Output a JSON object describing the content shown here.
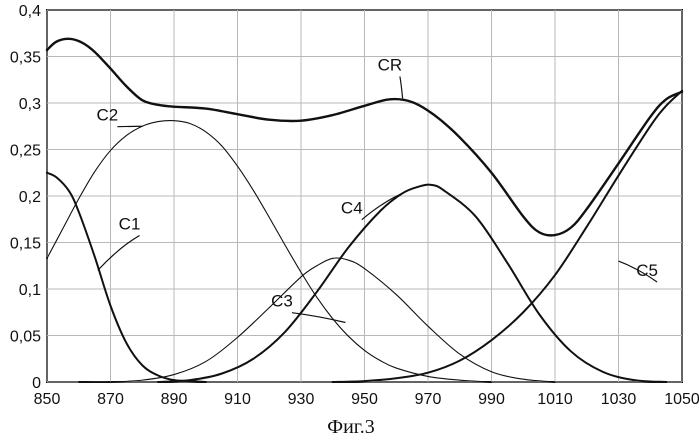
{
  "chart_data": {
    "type": "line",
    "xlim": [
      850,
      1050
    ],
    "ylim": [
      0,
      0.4
    ],
    "grid": true,
    "x_ticks": [
      "850",
      "870",
      "890",
      "910",
      "930",
      "950",
      "970",
      "990",
      "1010",
      "1030",
      "1050"
    ],
    "y_ticks": [
      "0",
      "0,05",
      "0,1",
      "0,15",
      "0,2",
      "0,25",
      "0,3",
      "0,35",
      "0,4"
    ],
    "series": [
      {
        "name": "CR",
        "color": "#111111",
        "points": [
          [
            850,
            0.357
          ],
          [
            853,
            0.366
          ],
          [
            857,
            0.369
          ],
          [
            861,
            0.365
          ],
          [
            865,
            0.355
          ],
          [
            870,
            0.337
          ],
          [
            875,
            0.318
          ],
          [
            880,
            0.303
          ],
          [
            885,
            0.298
          ],
          [
            890,
            0.296
          ],
          [
            900,
            0.294
          ],
          [
            910,
            0.288
          ],
          [
            920,
            0.282
          ],
          [
            930,
            0.281
          ],
          [
            940,
            0.287
          ],
          [
            950,
            0.297
          ],
          [
            958,
            0.304
          ],
          [
            965,
            0.301
          ],
          [
            972,
            0.287
          ],
          [
            980,
            0.263
          ],
          [
            990,
            0.225
          ],
          [
            1000,
            0.178
          ],
          [
            1005,
            0.161
          ],
          [
            1010,
            0.158
          ],
          [
            1015,
            0.166
          ],
          [
            1020,
            0.186
          ],
          [
            1030,
            0.235
          ],
          [
            1040,
            0.285
          ],
          [
            1045,
            0.304
          ],
          [
            1050,
            0.312
          ]
        ]
      },
      {
        "name": "C1",
        "color": "#111111",
        "points": [
          [
            850,
            0.225
          ],
          [
            853,
            0.22
          ],
          [
            857,
            0.205
          ],
          [
            860,
            0.183
          ],
          [
            865,
            0.135
          ],
          [
            870,
            0.082
          ],
          [
            875,
            0.042
          ],
          [
            880,
            0.018
          ],
          [
            885,
            0.007
          ],
          [
            890,
            0.002
          ],
          [
            895,
            0.001
          ],
          [
            900,
            0.0
          ]
        ]
      },
      {
        "name": "C2",
        "color": "#111111",
        "points": [
          [
            850,
            0.133
          ],
          [
            855,
            0.165
          ],
          [
            860,
            0.197
          ],
          [
            865,
            0.226
          ],
          [
            870,
            0.249
          ],
          [
            875,
            0.265
          ],
          [
            880,
            0.275
          ],
          [
            885,
            0.28
          ],
          [
            890,
            0.281
          ],
          [
            895,
            0.278
          ],
          [
            900,
            0.269
          ],
          [
            905,
            0.254
          ],
          [
            910,
            0.232
          ],
          [
            915,
            0.206
          ],
          [
            920,
            0.177
          ],
          [
            925,
            0.147
          ],
          [
            930,
            0.118
          ],
          [
            935,
            0.091
          ],
          [
            940,
            0.068
          ],
          [
            945,
            0.049
          ],
          [
            950,
            0.034
          ],
          [
            955,
            0.023
          ],
          [
            960,
            0.015
          ],
          [
            970,
            0.006
          ],
          [
            980,
            0.002
          ],
          [
            990,
            0.0
          ]
        ]
      },
      {
        "name": "C3",
        "color": "#111111",
        "points": [
          [
            860,
            0.0
          ],
          [
            870,
            0.0
          ],
          [
            880,
            0.002
          ],
          [
            890,
            0.008
          ],
          [
            900,
            0.022
          ],
          [
            910,
            0.048
          ],
          [
            920,
            0.08
          ],
          [
            930,
            0.113
          ],
          [
            935,
            0.125
          ],
          [
            940,
            0.133
          ],
          [
            945,
            0.131
          ],
          [
            950,
            0.122
          ],
          [
            960,
            0.094
          ],
          [
            970,
            0.06
          ],
          [
            980,
            0.03
          ],
          [
            990,
            0.011
          ],
          [
            1000,
            0.003
          ],
          [
            1010,
            0.0
          ]
        ]
      },
      {
        "name": "C4",
        "color": "#111111",
        "points": [
          [
            885,
            0.0
          ],
          [
            895,
            0.002
          ],
          [
            905,
            0.009
          ],
          [
            915,
            0.025
          ],
          [
            925,
            0.054
          ],
          [
            935,
            0.097
          ],
          [
            945,
            0.145
          ],
          [
            955,
            0.184
          ],
          [
            962,
            0.203
          ],
          [
            967,
            0.21
          ],
          [
            971,
            0.212
          ],
          [
            975,
            0.206
          ],
          [
            985,
            0.178
          ],
          [
            995,
            0.128
          ],
          [
            1005,
            0.073
          ],
          [
            1015,
            0.033
          ],
          [
            1025,
            0.011
          ],
          [
            1035,
            0.002
          ],
          [
            1045,
            0.0
          ]
        ]
      },
      {
        "name": "C5",
        "color": "#111111",
        "points": [
          [
            940,
            0.0
          ],
          [
            950,
            0.001
          ],
          [
            960,
            0.004
          ],
          [
            970,
            0.01
          ],
          [
            980,
            0.023
          ],
          [
            990,
            0.045
          ],
          [
            1000,
            0.075
          ],
          [
            1010,
            0.115
          ],
          [
            1020,
            0.167
          ],
          [
            1030,
            0.222
          ],
          [
            1040,
            0.275
          ],
          [
            1045,
            0.297
          ],
          [
            1050,
            0.313
          ]
        ]
      }
    ],
    "annotations": [
      {
        "label": "CR",
        "anchor": [
          962,
          0.305
        ],
        "text_pos": [
          958,
          0.335
        ]
      },
      {
        "label": "C2",
        "anchor": [
          880,
          0.275
        ],
        "text_pos": [
          869,
          0.281
        ]
      },
      {
        "label": "C1",
        "anchor": [
          866,
          0.12
        ],
        "text_pos": [
          876,
          0.164
        ]
      },
      {
        "label": "C4",
        "anchor": [
          962,
          0.203
        ],
        "text_pos": [
          946,
          0.181
        ]
      },
      {
        "label": "C3",
        "anchor": [
          944,
          0.064
        ],
        "text_pos": [
          924,
          0.081
        ]
      },
      {
        "label": "C5",
        "anchor": [
          1030,
          0.13
        ],
        "text_pos": [
          1039,
          0.114
        ]
      }
    ]
  },
  "caption": "Фиг.3"
}
